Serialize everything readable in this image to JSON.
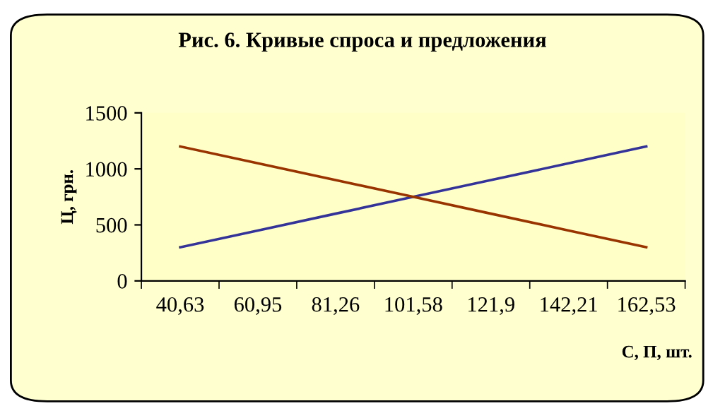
{
  "chart_data": {
    "type": "line",
    "title": "Рис. 6. Кривые спроса и предложения",
    "xlabel": "С, П, шт.",
    "ylabel": "Ц, грн.",
    "categories": [
      "40,63",
      "60,95",
      "81,26",
      "101,58",
      "121,9",
      "142,21",
      "162,53"
    ],
    "series": [
      {
        "color": "#333399",
        "values": [
          300,
          450,
          600,
          750,
          900,
          1050,
          1200
        ]
      },
      {
        "color": "#993300",
        "values": [
          1200,
          1050,
          900,
          750,
          600,
          450,
          300
        ]
      }
    ],
    "ylim": [
      0,
      1500
    ],
    "yticks": [
      0,
      500,
      1000,
      1500
    ],
    "grid": false,
    "marker": "none",
    "line_style": "solid"
  }
}
